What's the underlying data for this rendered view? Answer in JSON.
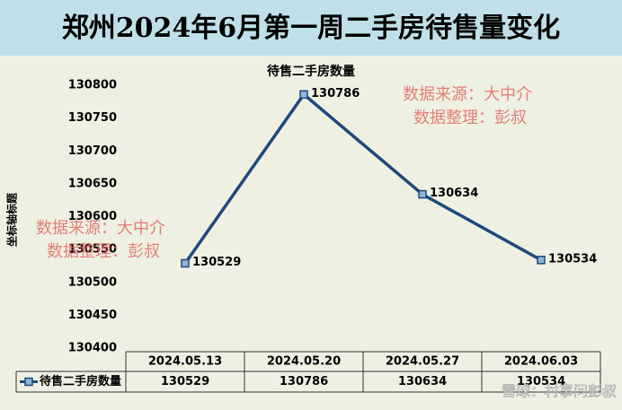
{
  "title": "郑州2024年6月第一周二手房待售量变化",
  "chart_data": {
    "type": "line",
    "title": "待售二手房数量",
    "y_label": "坐标轴标题",
    "categories": [
      "2024.05.13",
      "2024.05.20",
      "2024.05.27",
      "2024.06.03"
    ],
    "series": [
      {
        "name": "待售二手房数量",
        "color": "#1f497d",
        "values": [
          130529,
          130786,
          130634,
          130534
        ]
      }
    ],
    "ylim": [
      130400,
      130800
    ],
    "yticks": [
      130400,
      130450,
      130500,
      130550,
      130600,
      130650,
      130700,
      130750,
      130800
    ],
    "data_table": true
  },
  "watermarks": [
    [
      "数据来源：大中介",
      "数据整理：彭叔"
    ],
    [
      "数据来源：大中介",
      "数据整理：彭叔"
    ]
  ],
  "footer_watermark": "雪球：村事问彭叔"
}
